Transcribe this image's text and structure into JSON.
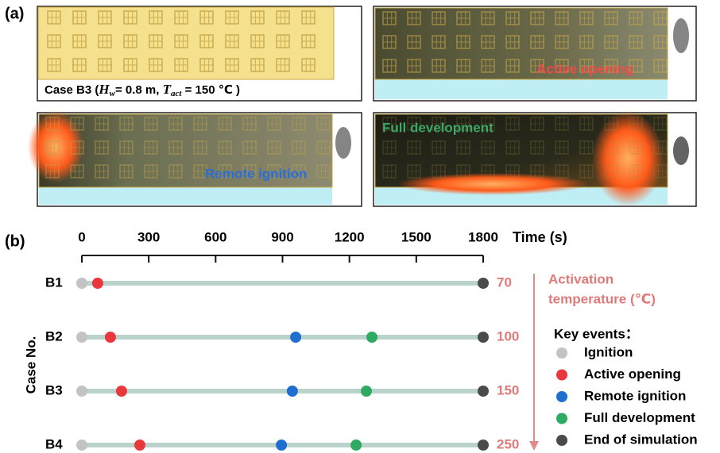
{
  "panel_a": {
    "label": "(a)",
    "caption": [
      "Case B3  (",
      "H",
      "w",
      "= 0.8 m,  ",
      "T",
      "act",
      " = 150 ℃ )"
    ],
    "annotations": [
      "Active opening",
      "Remote ignition",
      "Full development"
    ]
  },
  "chart_data": {
    "type": "timeline",
    "label": "(b)",
    "x_label": "Time (s)",
    "y_label": "Case No.",
    "categories": [
      "B1",
      "B2",
      "B3",
      "B4"
    ],
    "xlim": [
      0,
      1800
    ],
    "xticks": [
      0,
      300,
      600,
      900,
      1200,
      1500,
      1800
    ],
    "legend_title": "Key events：",
    "series": [
      {
        "name": "Ignition",
        "color": "#c3c3c3",
        "values": [
          0,
          0,
          0,
          0
        ]
      },
      {
        "name": "Active opening",
        "color": "#e8383d",
        "values": [
          71,
          128,
          178,
          260
        ]
      },
      {
        "name": "Remote ignition",
        "color": "#1f6fd1",
        "values": [
          null,
          959,
          944,
          895
        ]
      },
      {
        "name": "Full development",
        "color": "#2eaa62",
        "values": [
          null,
          1301,
          1276,
          1230
        ]
      },
      {
        "name": "End of simulation",
        "color": "#4a4a4a",
        "values": [
          1800,
          1800,
          1800,
          1800
        ]
      }
    ],
    "temperature_title": [
      "Activation",
      "temperature (℃)"
    ],
    "activation_temperatures": [
      70,
      100,
      150,
      250
    ]
  }
}
